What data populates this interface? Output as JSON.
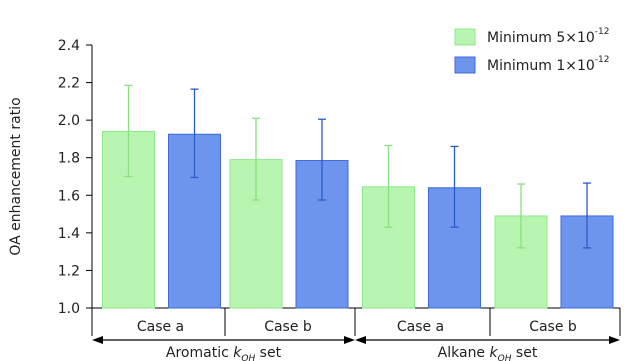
{
  "chart_data": {
    "type": "bar",
    "ylabel": "OA enhancement ratio",
    "ylim": [
      1.0,
      2.4
    ],
    "yticks": [
      "1.0",
      "1.2",
      "1.4",
      "1.6",
      "1.8",
      "2.0",
      "2.2",
      "2.4"
    ],
    "categories": [
      "Case a",
      "Case b",
      "Case a",
      "Case b"
    ],
    "groups": [
      {
        "label_prefix": "Aromatic ",
        "label_k": "k",
        "label_sub": "OH",
        "label_suffix": " set"
      },
      {
        "label_prefix": "Alkane ",
        "label_k": "k",
        "label_sub": "OH",
        "label_suffix": " set"
      }
    ],
    "series": [
      {
        "name_text": "Minimum 5×10",
        "name_sup": "-12",
        "color": "#b8f5b0",
        "edge": "#8fe88a",
        "errcolor": "#88e080",
        "values": [
          1.94,
          1.79,
          1.645,
          1.49
        ],
        "err_low": [
          1.7,
          1.575,
          1.43,
          1.32
        ],
        "err_high": [
          2.185,
          2.01,
          1.865,
          1.66
        ]
      },
      {
        "name_text": "Minimum 1×10",
        "name_sup": "-12",
        "color": "#6d95ee",
        "edge": "#3d6ad8",
        "errcolor": "#2a5cc8",
        "values": [
          1.925,
          1.785,
          1.64,
          1.49
        ],
        "err_low": [
          1.695,
          1.575,
          1.43,
          1.32
        ],
        "err_high": [
          2.165,
          2.005,
          1.86,
          1.665
        ]
      }
    ],
    "legend_position": "top-right",
    "grid": false
  }
}
